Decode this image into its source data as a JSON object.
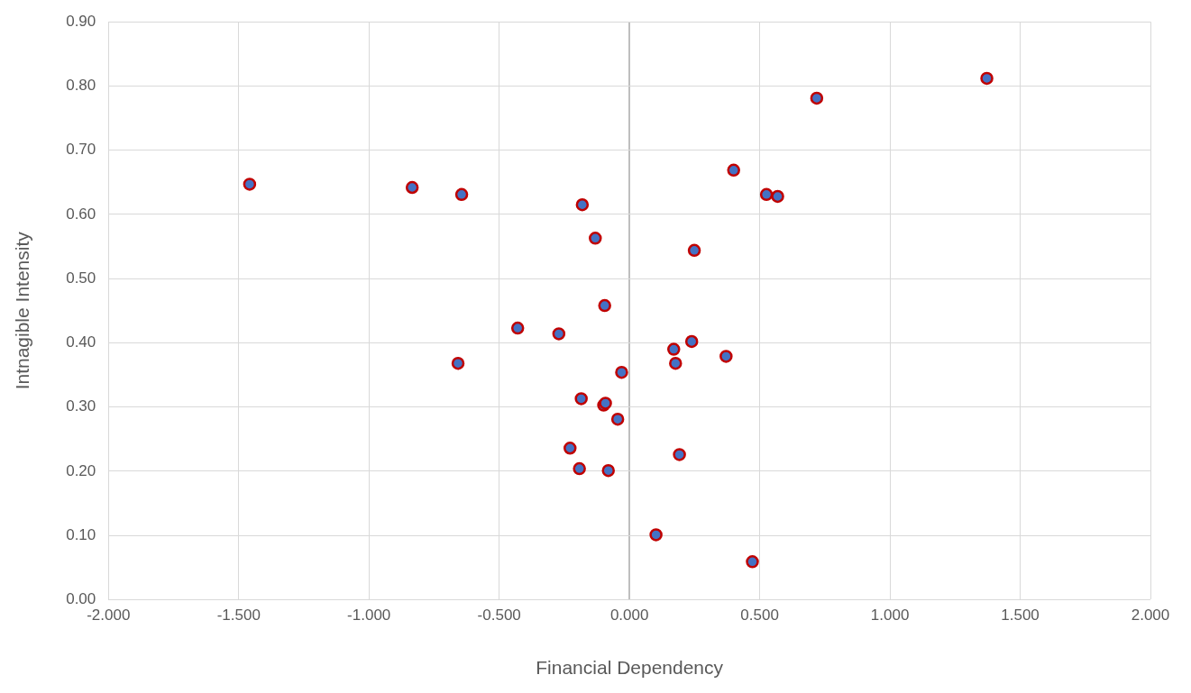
{
  "chart_data": {
    "type": "scatter",
    "xlabel": "Financial Dependency",
    "ylabel": "Intnagible Intensity",
    "series": [
      {
        "color": "#4472c4",
        "x": [
          -1.458,
          -0.834,
          -0.644,
          -0.181,
          -0.131,
          0.249,
          0.4,
          0.526,
          0.569,
          0.719,
          1.372,
          -0.429,
          -0.271,
          -0.095,
          -0.658,
          0.17,
          0.239,
          0.177,
          0.371,
          -0.03,
          -0.185,
          -0.099,
          -0.092,
          -0.045,
          -0.228,
          -0.192,
          -0.081,
          0.192,
          0.102,
          0.472
        ],
        "values": [
          0.647,
          0.642,
          0.631,
          0.615,
          0.563,
          0.544,
          0.669,
          0.631,
          0.628,
          0.781,
          0.812,
          0.423,
          0.414,
          0.458,
          0.368,
          0.39,
          0.402,
          0.368,
          0.379,
          0.354,
          0.313,
          0.303,
          0.306,
          0.281,
          0.236,
          0.204,
          0.201,
          0.226,
          0.101,
          0.059
        ]
      }
    ],
    "xlim": [
      -2,
      2
    ],
    "xticks": [
      {
        "value": -2,
        "label": "-2.000"
      },
      {
        "value": -1.5,
        "label": "-1.500"
      },
      {
        "value": -1,
        "label": "-1.000"
      },
      {
        "value": -0.5,
        "label": "-0.500"
      },
      {
        "value": 0,
        "label": "0.000"
      },
      {
        "value": 0.5,
        "label": "0.500"
      },
      {
        "value": 1,
        "label": "1.000"
      },
      {
        "value": 1.5,
        "label": "1.500"
      },
      {
        "value": 2,
        "label": "2.000"
      }
    ],
    "ylim": [
      0,
      0.9
    ],
    "yticks": [
      {
        "value": 0,
        "label": "0.00"
      },
      {
        "value": 0.1,
        "label": "0.10"
      },
      {
        "value": 0.2,
        "label": "0.20"
      },
      {
        "value": 0.3,
        "label": "0.30"
      },
      {
        "value": 0.4,
        "label": "0.40"
      },
      {
        "value": 0.5,
        "label": "0.50"
      },
      {
        "value": 0.6,
        "label": "0.60"
      },
      {
        "value": 0.7,
        "label": "0.70"
      },
      {
        "value": 0.8,
        "label": "0.80"
      },
      {
        "value": 0.9,
        "label": "0.90"
      }
    ],
    "grid": true,
    "legend": false,
    "marker": "circle"
  }
}
